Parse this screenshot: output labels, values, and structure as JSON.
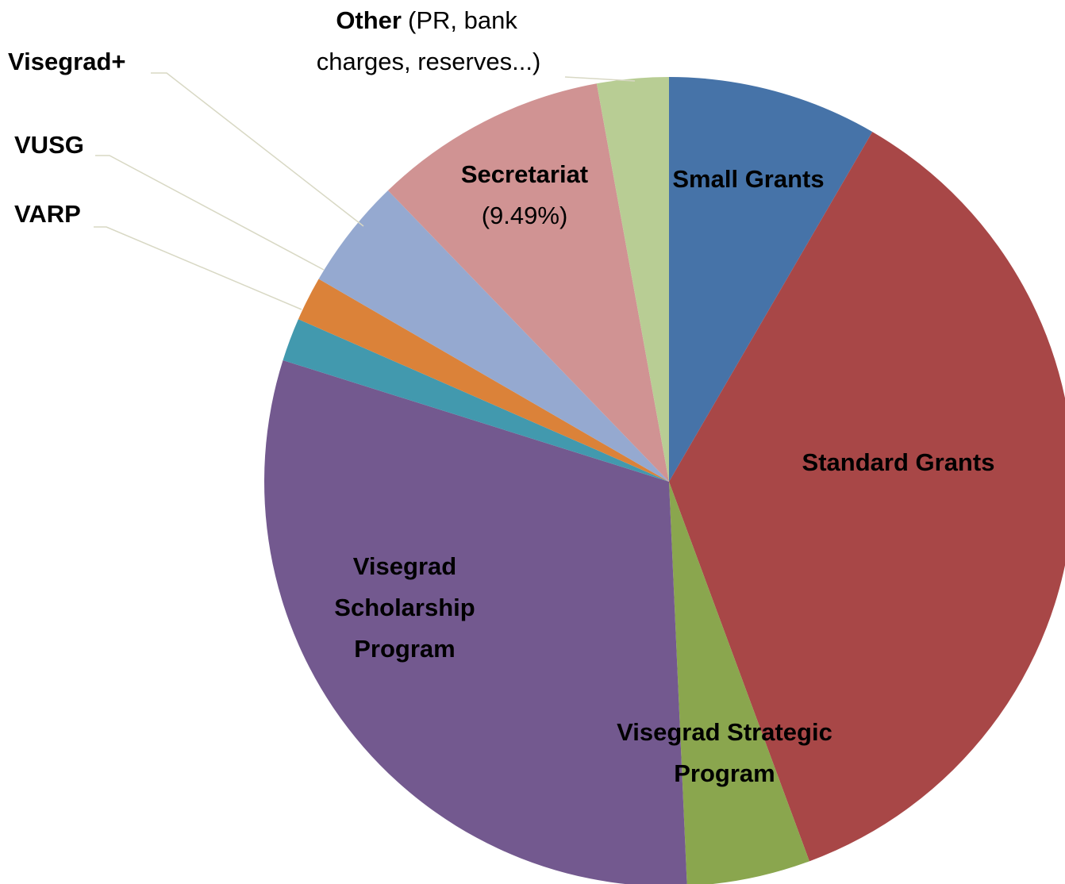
{
  "chart_data": {
    "type": "pie",
    "categories": [
      "Small Grants",
      "Standard Grants",
      "Visegrad Strategic Program",
      "Visegrad Scholarship Program",
      "VARP",
      "VUSG",
      "Visegrad+",
      "Secretariat",
      "Other"
    ],
    "values": [
      8.5,
      36.5,
      5,
      31,
      1.75,
      1.8,
      4.5,
      9.49,
      2.9
    ],
    "value_labels": [
      null,
      null,
      null,
      null,
      null,
      null,
      null,
      "(9.49%)",
      null
    ],
    "colors": [
      "#4673a8",
      "#a84747",
      "#8aa64e",
      "#73598f",
      "#4299ae",
      "#db8239",
      "#95a9d0",
      "#d09393",
      "#b8cd94"
    ],
    "annotations": [
      "(PR, bank charges, reserves...)"
    ]
  }
}
